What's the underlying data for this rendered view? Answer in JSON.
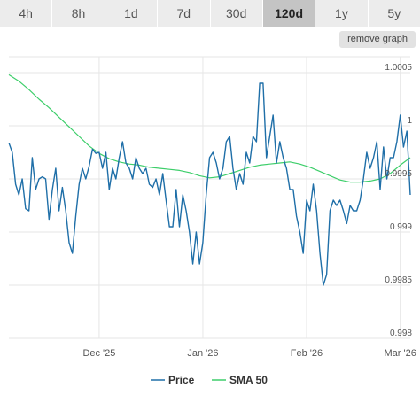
{
  "toolbar": {
    "ranges": [
      "4h",
      "8h",
      "1d",
      "7d",
      "30d",
      "120d",
      "1y",
      "5y"
    ],
    "active_range": "120d",
    "remove_graph_label": "remove graph"
  },
  "colors": {
    "price": "#1f6fa8",
    "sma": "#3dce6a",
    "grid": "#e6e6e6"
  },
  "chart_data": {
    "type": "line",
    "title": "",
    "xlabel": "",
    "ylabel": "",
    "ylim": [
      0.998,
      1.00065
    ],
    "y_ticks": [
      0.998,
      0.9985,
      0.999,
      0.9995,
      1,
      1.0005
    ],
    "y_tick_labels": [
      "0.998",
      "0.9985",
      "0.999",
      "0.9995",
      "1",
      "1.0005"
    ],
    "x_range": [
      "2025-11-04",
      "2026-03-04"
    ],
    "x_ticks": [
      {
        "date": "2025-12-01",
        "label": "Dec '25"
      },
      {
        "date": "2026-01-01",
        "label": "Jan '26"
      },
      {
        "date": "2026-02-01",
        "label": "Feb '26"
      },
      {
        "date": "2026-03-01",
        "label": "Mar '26"
      }
    ],
    "grid": true,
    "legend": "bottom-center",
    "series": [
      {
        "name": "Price",
        "points": [
          [
            "2025-11-04",
            0.99984
          ],
          [
            "2025-11-05",
            0.99975
          ],
          [
            "2025-11-06",
            0.99945
          ],
          [
            "2025-11-07",
            0.99935
          ],
          [
            "2025-11-08",
            0.9995
          ],
          [
            "2025-11-09",
            0.99922
          ],
          [
            "2025-11-10",
            0.9992
          ],
          [
            "2025-11-11",
            0.9997
          ],
          [
            "2025-11-12",
            0.9994
          ],
          [
            "2025-11-13",
            0.9995
          ],
          [
            "2025-11-14",
            0.99952
          ],
          [
            "2025-11-15",
            0.9995
          ],
          [
            "2025-11-16",
            0.99912
          ],
          [
            "2025-11-17",
            0.9994
          ],
          [
            "2025-11-18",
            0.9996
          ],
          [
            "2025-11-19",
            0.9992
          ],
          [
            "2025-11-20",
            0.99942
          ],
          [
            "2025-11-21",
            0.9992
          ],
          [
            "2025-11-22",
            0.9989
          ],
          [
            "2025-11-23",
            0.9988
          ],
          [
            "2025-11-24",
            0.99915
          ],
          [
            "2025-11-25",
            0.99945
          ],
          [
            "2025-11-26",
            0.9996
          ],
          [
            "2025-11-27",
            0.9995
          ],
          [
            "2025-11-28",
            0.99962
          ],
          [
            "2025-11-29",
            0.99978
          ],
          [
            "2025-11-30",
            0.99974
          ],
          [
            "2025-12-01",
            0.99975
          ],
          [
            "2025-12-02",
            0.9996
          ],
          [
            "2025-12-03",
            0.99975
          ],
          [
            "2025-12-04",
            0.9994
          ],
          [
            "2025-12-05",
            0.9996
          ],
          [
            "2025-12-06",
            0.9995
          ],
          [
            "2025-12-07",
            0.9997
          ],
          [
            "2025-12-08",
            0.99985
          ],
          [
            "2025-12-09",
            0.99965
          ],
          [
            "2025-12-10",
            0.9996
          ],
          [
            "2025-12-11",
            0.9995
          ],
          [
            "2025-12-12",
            0.9997
          ],
          [
            "2025-12-13",
            0.9996
          ],
          [
            "2025-12-14",
            0.99955
          ],
          [
            "2025-12-15",
            0.9996
          ],
          [
            "2025-12-16",
            0.99945
          ],
          [
            "2025-12-17",
            0.99942
          ],
          [
            "2025-12-18",
            0.9995
          ],
          [
            "2025-12-19",
            0.99935
          ],
          [
            "2025-12-20",
            0.99955
          ],
          [
            "2025-12-21",
            0.9993
          ],
          [
            "2025-12-22",
            0.99905
          ],
          [
            "2025-12-23",
            0.99905
          ],
          [
            "2025-12-24",
            0.9994
          ],
          [
            "2025-12-25",
            0.99905
          ],
          [
            "2025-12-26",
            0.99935
          ],
          [
            "2025-12-27",
            0.9992
          ],
          [
            "2025-12-28",
            0.999
          ],
          [
            "2025-12-29",
            0.9987
          ],
          [
            "2025-12-30",
            0.999
          ],
          [
            "2025-12-31",
            0.9987
          ],
          [
            "2026-01-01",
            0.9989
          ],
          [
            "2026-01-02",
            0.99935
          ],
          [
            "2026-01-03",
            0.9997
          ],
          [
            "2026-01-04",
            0.99975
          ],
          [
            "2026-01-05",
            0.99965
          ],
          [
            "2026-01-06",
            0.9995
          ],
          [
            "2026-01-07",
            0.9996
          ],
          [
            "2026-01-08",
            0.99985
          ],
          [
            "2026-01-09",
            0.9999
          ],
          [
            "2026-01-10",
            0.9996
          ],
          [
            "2026-01-11",
            0.9994
          ],
          [
            "2026-01-12",
            0.99955
          ],
          [
            "2026-01-13",
            0.99945
          ],
          [
            "2026-01-14",
            0.99975
          ],
          [
            "2026-01-15",
            0.99965
          ],
          [
            "2026-01-16",
            0.9999
          ],
          [
            "2026-01-17",
            0.99985
          ],
          [
            "2026-01-18",
            1.0004
          ],
          [
            "2026-01-19",
            1.0004
          ],
          [
            "2026-01-20",
            0.9997
          ],
          [
            "2026-01-21",
            0.9999
          ],
          [
            "2026-01-22",
            1.0001
          ],
          [
            "2026-01-23",
            0.99965
          ],
          [
            "2026-01-24",
            0.99985
          ],
          [
            "2026-01-25",
            0.9997
          ],
          [
            "2026-01-26",
            0.9996
          ],
          [
            "2026-01-27",
            0.9994
          ],
          [
            "2026-01-28",
            0.9994
          ],
          [
            "2026-01-29",
            0.99915
          ],
          [
            "2026-01-30",
            0.999
          ],
          [
            "2026-01-31",
            0.9988
          ],
          [
            "2026-02-01",
            0.9993
          ],
          [
            "2026-02-02",
            0.9992
          ],
          [
            "2026-02-03",
            0.99945
          ],
          [
            "2026-02-04",
            0.9992
          ],
          [
            "2026-02-05",
            0.9988
          ],
          [
            "2026-02-06",
            0.9985
          ],
          [
            "2026-02-07",
            0.9986
          ],
          [
            "2026-02-08",
            0.9992
          ],
          [
            "2026-02-09",
            0.9993
          ],
          [
            "2026-02-10",
            0.99925
          ],
          [
            "2026-02-11",
            0.9993
          ],
          [
            "2026-02-12",
            0.9992
          ],
          [
            "2026-02-13",
            0.99908
          ],
          [
            "2026-02-14",
            0.99925
          ],
          [
            "2026-02-15",
            0.9992
          ],
          [
            "2026-02-16",
            0.9992
          ],
          [
            "2026-02-17",
            0.9993
          ],
          [
            "2026-02-18",
            0.9995
          ],
          [
            "2026-02-19",
            0.99975
          ],
          [
            "2026-02-20",
            0.9996
          ],
          [
            "2026-02-21",
            0.9997
          ],
          [
            "2026-02-22",
            0.99985
          ],
          [
            "2026-02-23",
            0.9994
          ],
          [
            "2026-02-24",
            0.9998
          ],
          [
            "2026-02-25",
            0.9995
          ],
          [
            "2026-02-26",
            0.9997
          ],
          [
            "2026-02-27",
            0.9997
          ],
          [
            "2026-02-28",
            0.99985
          ],
          [
            "2026-03-01",
            1.0001
          ],
          [
            "2026-03-02",
            0.9998
          ],
          [
            "2026-03-03",
            0.99995
          ],
          [
            "2026-03-04",
            0.99935
          ]
        ]
      },
      {
        "name": "SMA 50",
        "points": [
          [
            "2025-11-04",
            1.00048
          ],
          [
            "2025-11-07",
            1.00042
          ],
          [
            "2025-11-10",
            1.00034
          ],
          [
            "2025-11-13",
            1.00025
          ],
          [
            "2025-11-16",
            1.00017
          ],
          [
            "2025-11-19",
            1.00008
          ],
          [
            "2025-11-22",
            0.99999
          ],
          [
            "2025-11-25",
            0.9999
          ],
          [
            "2025-11-28",
            0.99981
          ],
          [
            "2025-12-01",
            0.99974
          ],
          [
            "2025-12-04",
            0.99969
          ],
          [
            "2025-12-07",
            0.99966
          ],
          [
            "2025-12-10",
            0.99964
          ],
          [
            "2025-12-13",
            0.99963
          ],
          [
            "2025-12-16",
            0.99961
          ],
          [
            "2025-12-19",
            0.9996
          ],
          [
            "2025-12-22",
            0.99959
          ],
          [
            "2025-12-25",
            0.99958
          ],
          [
            "2025-12-28",
            0.99956
          ],
          [
            "2025-12-31",
            0.99953
          ],
          [
            "2026-01-03",
            0.99951
          ],
          [
            "2026-01-06",
            0.99952
          ],
          [
            "2026-01-09",
            0.99955
          ],
          [
            "2026-01-12",
            0.99958
          ],
          [
            "2026-01-15",
            0.99961
          ],
          [
            "2026-01-18",
            0.99963
          ],
          [
            "2026-01-21",
            0.99964
          ],
          [
            "2026-01-24",
            0.99965
          ],
          [
            "2026-01-27",
            0.99966
          ],
          [
            "2026-01-30",
            0.99964
          ],
          [
            "2026-02-02",
            0.99961
          ],
          [
            "2026-02-05",
            0.99957
          ],
          [
            "2026-02-08",
            0.99953
          ],
          [
            "2026-02-11",
            0.99949
          ],
          [
            "2026-02-14",
            0.99947
          ],
          [
            "2026-02-17",
            0.99947
          ],
          [
            "2026-02-20",
            0.99948
          ],
          [
            "2026-02-23",
            0.9995
          ],
          [
            "2026-02-26",
            0.99955
          ],
          [
            "2026-03-01",
            0.99963
          ],
          [
            "2026-03-04",
            0.9997
          ]
        ]
      }
    ]
  }
}
